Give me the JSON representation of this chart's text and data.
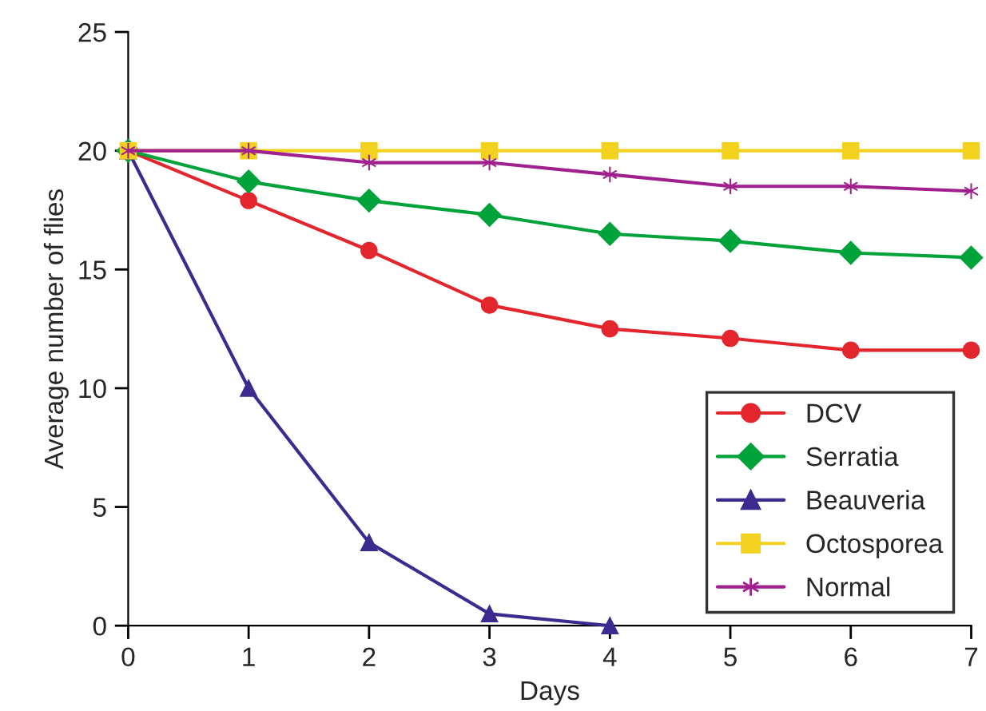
{
  "chart_data": {
    "type": "line",
    "xlabel": "Days",
    "ylabel": "Average number of flies",
    "xlim": [
      0,
      7
    ],
    "xticks": [
      0,
      1,
      2,
      3,
      4,
      5,
      6,
      7
    ],
    "ylim": [
      0,
      25
    ],
    "yticks": [
      0,
      5,
      10,
      15,
      20,
      25
    ],
    "grid": false,
    "legend": "bottom right",
    "series": [
      {
        "name": "DCV",
        "color": "#e3262d",
        "marker": "circle",
        "x": [
          0,
          1,
          2,
          3,
          4,
          5,
          6,
          7
        ],
        "values": [
          20,
          17.9,
          15.8,
          13.5,
          12.5,
          12.1,
          11.6,
          11.6
        ]
      },
      {
        "name": "Serratia",
        "color": "#00a23a",
        "marker": "diamond",
        "x": [
          0,
          1,
          2,
          3,
          4,
          5,
          6,
          7
        ],
        "values": [
          20,
          18.7,
          17.9,
          17.3,
          16.5,
          16.2,
          15.7,
          15.5
        ]
      },
      {
        "name": "Beauveria",
        "color": "#3c2a8f",
        "marker": "triangle",
        "x": [
          0,
          1,
          2,
          3,
          4
        ],
        "values": [
          20,
          10,
          3.5,
          0.5,
          0
        ]
      },
      {
        "name": "Octosporea",
        "color": "#f2d21e",
        "marker": "square",
        "x": [
          0,
          1,
          2,
          3,
          4,
          5,
          6,
          7
        ],
        "values": [
          20,
          20,
          20,
          20,
          20,
          20,
          20,
          20
        ]
      },
      {
        "name": "Normal",
        "color": "#a0208e",
        "marker": "cross",
        "x": [
          0,
          1,
          2,
          3,
          4,
          5,
          6,
          7
        ],
        "values": [
          20,
          20,
          19.5,
          19.5,
          19.0,
          18.5,
          18.5,
          18.3
        ]
      }
    ]
  }
}
